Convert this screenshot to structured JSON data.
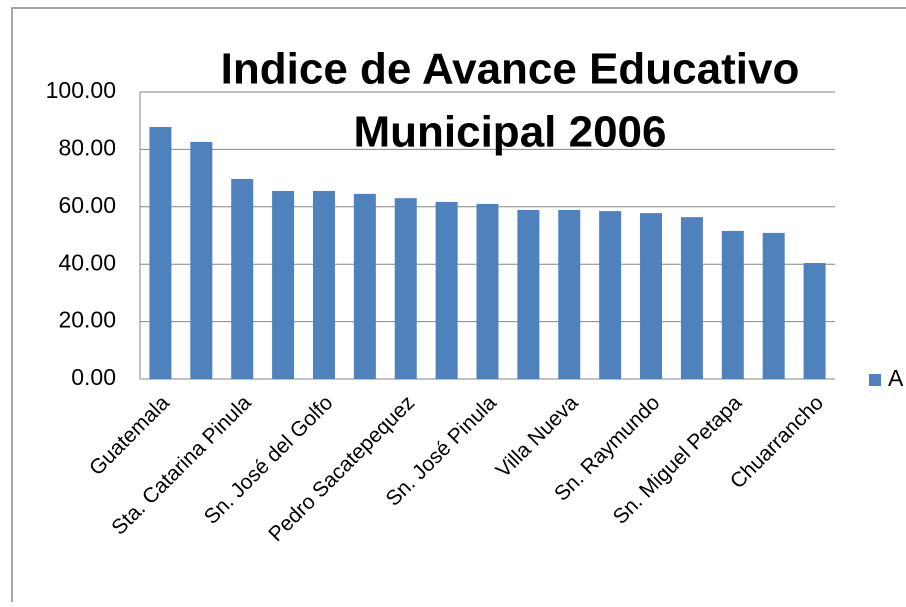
{
  "chart_data": {
    "type": "bar",
    "title": [
      "Indice de Avance Educativo",
      "Municipal 2006"
    ],
    "categories": [
      "Guatemala",
      null,
      "Sta. Catarina Pinula",
      null,
      "Sn. José del Golfo",
      null,
      "Pedro Sacatepequez",
      null,
      "Sn. José Pinula",
      null,
      "Villa Nueva",
      null,
      "Sn. Raymundo",
      null,
      "Sn. Miguel Petapa",
      null,
      "Chuarrancho"
    ],
    "series": [
      {
        "name": "A",
        "color": "#4f81bd",
        "values": [
          87.8,
          82.6,
          69.7,
          65.5,
          65.5,
          64.5,
          63.0,
          61.7,
          61.0,
          58.9,
          58.9,
          58.5,
          57.8,
          56.4,
          51.6,
          50.9,
          40.4
        ]
      }
    ],
    "ylim": [
      0,
      100
    ],
    "yticks": [
      {
        "value": 0,
        "label": "0.00"
      },
      {
        "value": 20,
        "label": "20.00"
      },
      {
        "value": 40,
        "label": "40.00"
      },
      {
        "value": 60,
        "label": "60.00"
      },
      {
        "value": 80,
        "label": "80.00"
      },
      {
        "value": 100,
        "label": "100.00"
      }
    ],
    "grid": true
  }
}
